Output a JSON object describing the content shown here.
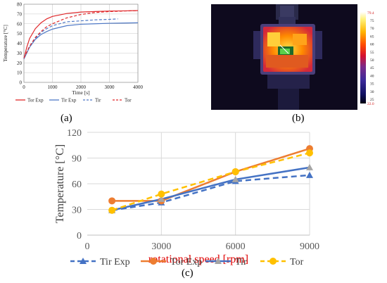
{
  "panels": {
    "a": {
      "label": "(a)"
    },
    "b": {
      "label": "(b)"
    },
    "c": {
      "label": "(c)"
    }
  },
  "thermal_scale": {
    "max_label": "79.4",
    "min_label": "22.0",
    "ticks": [
      "75",
      "70",
      "65",
      "60",
      "55",
      "50",
      "45",
      "40",
      "35",
      "30",
      "25"
    ]
  },
  "chart_data": [
    {
      "type": "line",
      "panel": "a",
      "xlabel": "Time [s]",
      "ylabel": "Temperature [°C]",
      "xlim": [
        0,
        4000
      ],
      "ylim": [
        0,
        80
      ],
      "xticks": [
        "0",
        "1000",
        "2000",
        "3000",
        "4000"
      ],
      "yticks": [
        "0",
        "10",
        "20",
        "30",
        "40",
        "50",
        "60",
        "70",
        "80"
      ],
      "grid": true,
      "legend": "bottom",
      "series": [
        {
          "name": "Tor Exp",
          "color": "#e0282b",
          "dash": "solid",
          "x": [
            0,
            100,
            200,
            400,
            600,
            800,
            1000,
            1500,
            2000,
            2500,
            3000,
            3500,
            4000
          ],
          "y": [
            24,
            36,
            45,
            55,
            61,
            65,
            67.5,
            70.5,
            72,
            72.5,
            73,
            73.2,
            73.5
          ]
        },
        {
          "name": "Tir Exp",
          "color": "#4f79c6",
          "dash": "solid",
          "x": [
            0,
            100,
            200,
            400,
            600,
            800,
            1000,
            1500,
            2000,
            2500,
            3000,
            3500,
            4000
          ],
          "y": [
            24,
            30,
            36,
            44,
            49,
            52,
            54.5,
            58,
            59.5,
            60,
            60.5,
            60.7,
            61
          ]
        },
        {
          "name": "Tir",
          "color": "#4f79c6",
          "dash": "dashed",
          "x": [
            0,
            100,
            200,
            400,
            600,
            800,
            1000,
            1500,
            2000,
            2500,
            3000,
            3300
          ],
          "y": [
            25,
            31,
            37,
            45,
            51,
            55,
            58,
            62,
            63,
            64,
            64.5,
            65
          ]
        },
        {
          "name": "Tor",
          "color": "#e0282b",
          "dash": "dashed",
          "x": [
            0,
            100,
            200,
            400,
            600,
            800,
            1000,
            1500,
            2000,
            2500,
            3000,
            3500,
            4000
          ],
          "y": [
            25,
            31,
            37,
            46,
            52,
            57,
            60,
            66,
            69.5,
            71.5,
            72.5,
            73,
            73.5
          ]
        }
      ]
    },
    {
      "type": "line",
      "panel": "c",
      "xlabel": "rotational speed [rpm]",
      "ylabel": "Temperature [°C]",
      "xlim": [
        0,
        9000
      ],
      "ylim": [
        0,
        120
      ],
      "xticks": [
        "0",
        "3000",
        "6000",
        "9000"
      ],
      "yticks": [
        "0",
        "30",
        "60",
        "90",
        "120"
      ],
      "grid": true,
      "legend": "bottom",
      "x": [
        1000,
        3000,
        6000,
        9000
      ],
      "series": [
        {
          "name": "Tir Exp",
          "color": "#4472c4",
          "dash": "dashed",
          "marker": "triangle",
          "values": [
            29,
            38,
            63,
            70
          ]
        },
        {
          "name": "Tor Exp",
          "color": "#ed7d31",
          "dash": "solid",
          "marker": "circle",
          "values": [
            40,
            40,
            74,
            101
          ]
        },
        {
          "name": "Tir",
          "color": "#4472c4",
          "dash": "solid",
          "marker": "triangle",
          "values": [
            29,
            42,
            65,
            79
          ]
        },
        {
          "name": "Tor",
          "color": "#ffc000",
          "dash": "dashed",
          "marker": "circle",
          "values": [
            29,
            48,
            74,
            96
          ]
        }
      ]
    }
  ]
}
